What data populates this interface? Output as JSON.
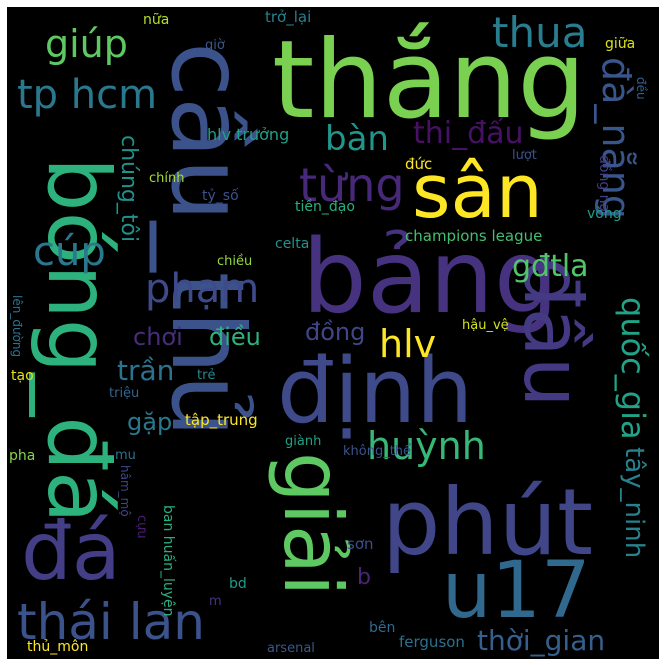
{
  "cloud": {
    "words": [
      {
        "text": "cầu_thủ",
        "color": "#3b528b"
      },
      {
        "text": "thắng",
        "color": "#7ad151"
      },
      {
        "text": "sân",
        "color": "#fde725"
      },
      {
        "text": "bảng",
        "color": "#46327e"
      },
      {
        "text": "bóng_đá",
        "color": "#2db27d"
      },
      {
        "text": "đầu",
        "color": "#443983"
      },
      {
        "text": "định",
        "color": "#3e4a89"
      },
      {
        "text": "phút",
        "color": "#404688"
      },
      {
        "text": "giải",
        "color": "#5ec962"
      },
      {
        "text": "u17",
        "color": "#31688e"
      },
      {
        "text": "đá",
        "color": "#433e85"
      },
      {
        "text": "thái lan",
        "color": "#3b528b"
      },
      {
        "text": "tp hcm",
        "color": "#2a788e"
      },
      {
        "text": "thua",
        "color": "#287d8e"
      },
      {
        "text": "giúp",
        "color": "#5ec962"
      },
      {
        "text": "đà_nẵng",
        "color": "#39568c"
      },
      {
        "text": "từng",
        "color": "#482878"
      },
      {
        "text": "bàn",
        "color": "#1f988b"
      },
      {
        "text": "thi_đấu",
        "color": "#471164"
      },
      {
        "text": "cúp",
        "color": "#2a788e"
      },
      {
        "text": "chúng_tôi",
        "color": "#21918c"
      },
      {
        "text": "phạm",
        "color": "#3e4a89"
      },
      {
        "text": "gđtla",
        "color": "#52c569"
      },
      {
        "text": "quốc_gia",
        "color": "#20a386"
      },
      {
        "text": "hlv",
        "color": "#fde725"
      },
      {
        "text": "chơi",
        "color": "#472d7b"
      },
      {
        "text": "điều",
        "color": "#2db27d"
      },
      {
        "text": "đồng",
        "color": "#404688"
      },
      {
        "text": "trần",
        "color": "#2c728e"
      },
      {
        "text": "gặp",
        "color": "#2a788e"
      },
      {
        "text": "huỳnh",
        "color": "#37b878"
      },
      {
        "text": "tây_ninh",
        "color": "#26828e"
      },
      {
        "text": "thời_gian",
        "color": "#35608d"
      },
      {
        "text": "champions league",
        "color": "#44bf70"
      },
      {
        "text": "celta",
        "color": "#21918c"
      },
      {
        "text": "tiền_đạo",
        "color": "#29af7f"
      },
      {
        "text": "tỷ_số",
        "color": "#3b528b"
      },
      {
        "text": "chính",
        "color": "#a5db36"
      },
      {
        "text": "chiều",
        "color": "#95d840"
      },
      {
        "text": "hlv trưởng",
        "color": "#1fa187"
      },
      {
        "text": "đức",
        "color": "#fde725"
      },
      {
        "text": "lượt",
        "color": "#3b528b"
      },
      {
        "text": "đồng nai",
        "color": "#433e85"
      },
      {
        "text": "vòng",
        "color": "#1f9e89"
      },
      {
        "text": "trở_lại",
        "color": "#26828e"
      },
      {
        "text": "nữa",
        "color": "#b5de2b"
      },
      {
        "text": "giờ",
        "color": "#38598c"
      },
      {
        "text": "giữa",
        "color": "#d8e219"
      },
      {
        "text": "đều",
        "color": "#355f8d"
      },
      {
        "text": "lên_đường",
        "color": "#2c728e"
      },
      {
        "text": "tạo",
        "color": "#dde318"
      },
      {
        "text": "triệu",
        "color": "#32658e"
      },
      {
        "text": "trẻ",
        "color": "#23898e"
      },
      {
        "text": "tập_trung",
        "color": "#fde725"
      },
      {
        "text": "hậu_vệ",
        "color": "#d2e21b"
      },
      {
        "text": "pha",
        "color": "#86d549"
      },
      {
        "text": "mu",
        "color": "#2d708e"
      },
      {
        "text": "hâm_mộ",
        "color": "#3f4788"
      },
      {
        "text": "cựu",
        "color": "#481f70"
      },
      {
        "text": "ban huấn_luyện",
        "color": "#29af7f"
      },
      {
        "text": "giành",
        "color": "#1fa187"
      },
      {
        "text": "không_thể",
        "color": "#3a538b"
      },
      {
        "text": "sơn",
        "color": "#3c4f8a"
      },
      {
        "text": "b",
        "color": "#482576"
      },
      {
        "text": "bd",
        "color": "#1e9b8a"
      },
      {
        "text": "m",
        "color": "#46337f"
      },
      {
        "text": "bên",
        "color": "#31688e"
      },
      {
        "text": "ferguson",
        "color": "#2d708e"
      },
      {
        "text": "arsenal",
        "color": "#38588c"
      },
      {
        "text": "thủ_môn",
        "color": "#fde725"
      }
    ]
  }
}
